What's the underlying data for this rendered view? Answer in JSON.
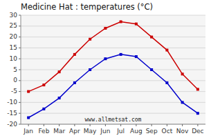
{
  "chart_data": {
    "type": "line",
    "title": "Medicine Hat : temperatures (°C)",
    "categories": [
      "Jan",
      "Feb",
      "Mar",
      "Apr",
      "May",
      "Jun",
      "Jul",
      "Aug",
      "Sep",
      "Oct",
      "Nov",
      "Dec"
    ],
    "series": [
      {
        "color": "#cc0000",
        "marker": "square",
        "values": [
          -5,
          -2,
          4,
          12,
          19,
          24,
          27,
          26,
          20,
          14,
          3,
          -4
        ]
      },
      {
        "color": "#0000cc",
        "marker": "square",
        "values": [
          -17,
          -13,
          -8,
          -1,
          5,
          10,
          12,
          11,
          5,
          -1,
          -10,
          -15
        ]
      }
    ],
    "ylim": [
      -20,
      30
    ],
    "yticks": [
      -20,
      -15,
      -10,
      -5,
      0,
      5,
      10,
      15,
      20,
      25,
      30
    ],
    "grid": true,
    "annotations": [
      "www.allmetsat.com"
    ]
  }
}
